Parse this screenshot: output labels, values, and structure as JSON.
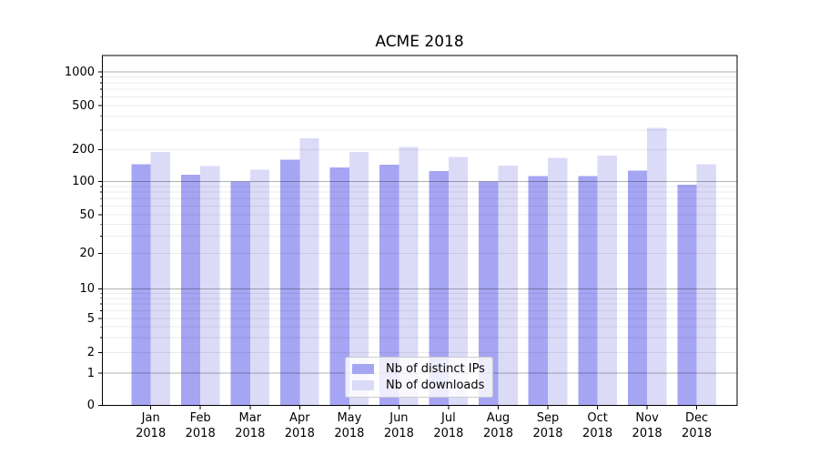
{
  "figure": {
    "title": "ACME 2018"
  },
  "legend": {
    "items": [
      {
        "label": "Nb of distinct IPs",
        "color": "#a5a5f3"
      },
      {
        "label": "Nb of downloads",
        "color": "#dbdbf8"
      }
    ]
  },
  "chart_data": {
    "type": "bar",
    "title": "ACME 2018",
    "categories": [
      "Jan",
      "Feb",
      "Mar",
      "Apr",
      "May",
      "Jun",
      "Jul",
      "Aug",
      "Sep",
      "Oct",
      "Nov",
      "Dec"
    ],
    "category_year": "2018",
    "series": [
      {
        "name": "Nb of distinct IPs",
        "color": "#a5a5f3",
        "values": [
          145,
          115,
          100,
          160,
          136,
          143,
          125,
          100,
          112,
          112,
          126,
          93
        ]
      },
      {
        "name": "Nb of downloads",
        "color": "#dbdbf8",
        "values": [
          190,
          140,
          129,
          252,
          190,
          210,
          170,
          141,
          166,
          176,
          315,
          145
        ]
      }
    ],
    "xlabel": "",
    "ylabel": "",
    "y_ticks": [
      0,
      1,
      2,
      5,
      10,
      20,
      50,
      100,
      200,
      500,
      1000
    ],
    "yscale": "log-like (asinh), linear below 1",
    "ylim": [
      0,
      1400
    ],
    "grid": true,
    "grid_major_color": "#b3b3b3",
    "grid_minor_color": "#ececec",
    "legend_position": "lower center"
  }
}
